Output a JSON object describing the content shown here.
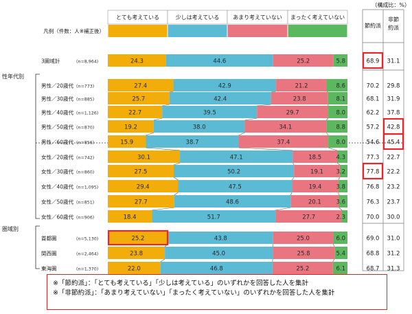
{
  "chart_data": {
    "type": "bar",
    "stacked": true,
    "unit_label": "（構成比：%）",
    "legend_row_label": "凡例（件数：人※補正後）",
    "categories_legend": [
      "とても考えている",
      "少しは考えている",
      "あまり考えていない",
      "まったく考えていない"
    ],
    "side_headers": [
      "節約派",
      "非節約派"
    ],
    "colors": {
      "very": "#f2ad0a",
      "somewhat": "#5bbad4",
      "not_much": "#e97581",
      "not_at_all": "#5cb85e",
      "highlight": "#e8262e",
      "dark_text": "#2a2a2a"
    },
    "groups": [
      {
        "label": ""
      },
      {
        "label": "性年代別"
      },
      {
        "label": "圏域別"
      }
    ],
    "rows": [
      {
        "label": "3圏域計",
        "n": "(n=8,964)",
        "values": [
          24.3,
          44.6,
          25.2,
          5.8
        ],
        "labels": [
          "24.3",
          "44.6",
          "25.2",
          "5.8"
        ],
        "save": "68.9",
        "nosave": "31.1"
      },
      {
        "label": "男性／20歳代",
        "n": "(n=773)",
        "values": [
          27.4,
          42.9,
          21.2,
          8.6
        ],
        "labels": [
          "27.4",
          "42.9",
          "21.2",
          "8.6"
        ],
        "save": "70.2",
        "nosave": "29.8"
      },
      {
        "label": "男性／30歳代",
        "n": "(n=885)",
        "values": [
          25.7,
          42.4,
          23.8,
          8.1
        ],
        "labels": [
          "25.7",
          "42.4",
          "23.8",
          "8.1"
        ],
        "save": "68.1",
        "nosave": "31.9"
      },
      {
        "label": "男性／40歳代",
        "n": "(n=1,126)",
        "values": [
          22.7,
          39.5,
          29.7,
          8.0
        ],
        "labels": [
          "22.7",
          "39.5",
          "29.7",
          "8.0"
        ],
        "save": "62.2",
        "nosave": "37.8"
      },
      {
        "label": "男性／50歳代",
        "n": "(n=870)",
        "values": [
          19.2,
          38.0,
          34.1,
          8.8
        ],
        "labels": [
          "19.2",
          "38.0",
          "34.1",
          "8.8"
        ],
        "save": "57.2",
        "nosave": "42.8"
      },
      {
        "label": "男性／60歳代",
        "n": "(n=856)",
        "values": [
          15.9,
          38.7,
          37.4,
          8.0
        ],
        "labels": [
          "15.9",
          "38.7",
          "37.4",
          "8.0"
        ],
        "save": "54.6",
        "nosave": "45.4"
      },
      {
        "label": "女性／20歳代",
        "n": "(n=742)",
        "values": [
          30.1,
          47.1,
          18.5,
          4.3
        ],
        "labels": [
          "30.1",
          "47.1",
          "18.5",
          "4.3"
        ],
        "save": "77.3",
        "nosave": "22.7"
      },
      {
        "label": "女性／30歳代",
        "n": "(n=860)",
        "values": [
          27.5,
          50.2,
          19.1,
          3.2
        ],
        "labels": [
          "27.5",
          "50.2",
          "19.1",
          "3.2"
        ],
        "save": "77.8",
        "nosave": "22.2"
      },
      {
        "label": "女性／40歳代",
        "n": "(n=1,095)",
        "values": [
          29.4,
          47.5,
          19.4,
          3.8
        ],
        "labels": [
          "29.4",
          "47.5",
          "19.4",
          "3.8"
        ],
        "save": "76.8",
        "nosave": "23.2"
      },
      {
        "label": "女性／50歳代",
        "n": "(n=851)",
        "values": [
          27.7,
          48.6,
          20.1,
          3.6
        ],
        "labels": [
          "27.7",
          "48.6",
          "20.1",
          "3.6"
        ],
        "save": "76.3",
        "nosave": "23.7"
      },
      {
        "label": "女性／60歳代",
        "n": "(n=906)",
        "values": [
          18.4,
          51.7,
          27.7,
          2.3
        ],
        "labels": [
          "18.4",
          "51.7",
          "27.7",
          "2.3"
        ],
        "save": "70.0",
        "nosave": "30.0"
      },
      {
        "label": "首都圏",
        "n": "(n=5,130)",
        "values": [
          25.2,
          43.8,
          25.0,
          6.0
        ],
        "labels": [
          "25.2",
          "43.8",
          "25.0",
          "6.0"
        ],
        "save": "69.0",
        "nosave": "31.0"
      },
      {
        "label": "関西圏",
        "n": "(n=2,464)",
        "values": [
          23.8,
          45.0,
          25.8,
          5.4
        ],
        "labels": [
          "23.8",
          "45.0",
          "25.8",
          "5.4"
        ],
        "save": "68.8",
        "nosave": "31.2"
      },
      {
        "label": "東海圏",
        "n": "(n=1,370)",
        "values": [
          22.0,
          46.8,
          25.2,
          6.1
        ],
        "labels": [
          "22.0",
          "46.8",
          "25.2",
          "6.1"
        ],
        "save": "68.7",
        "nosave": "31.3"
      }
    ],
    "highlights": {
      "bar_segments": [
        [
          11,
          0
        ]
      ],
      "side_cells": [
        [
          0,
          "save"
        ],
        [
          4,
          "nosave"
        ],
        [
          5,
          "nosave"
        ],
        [
          7,
          "save"
        ]
      ]
    },
    "notes": [
      "※「節約派」：「とても考えている」「少しは考えている」のいずれかを回答した人を集計",
      "※「非節約派」：「あまり考えていない」「まったく考えていない」のいずれかを回答した人を集計"
    ]
  }
}
